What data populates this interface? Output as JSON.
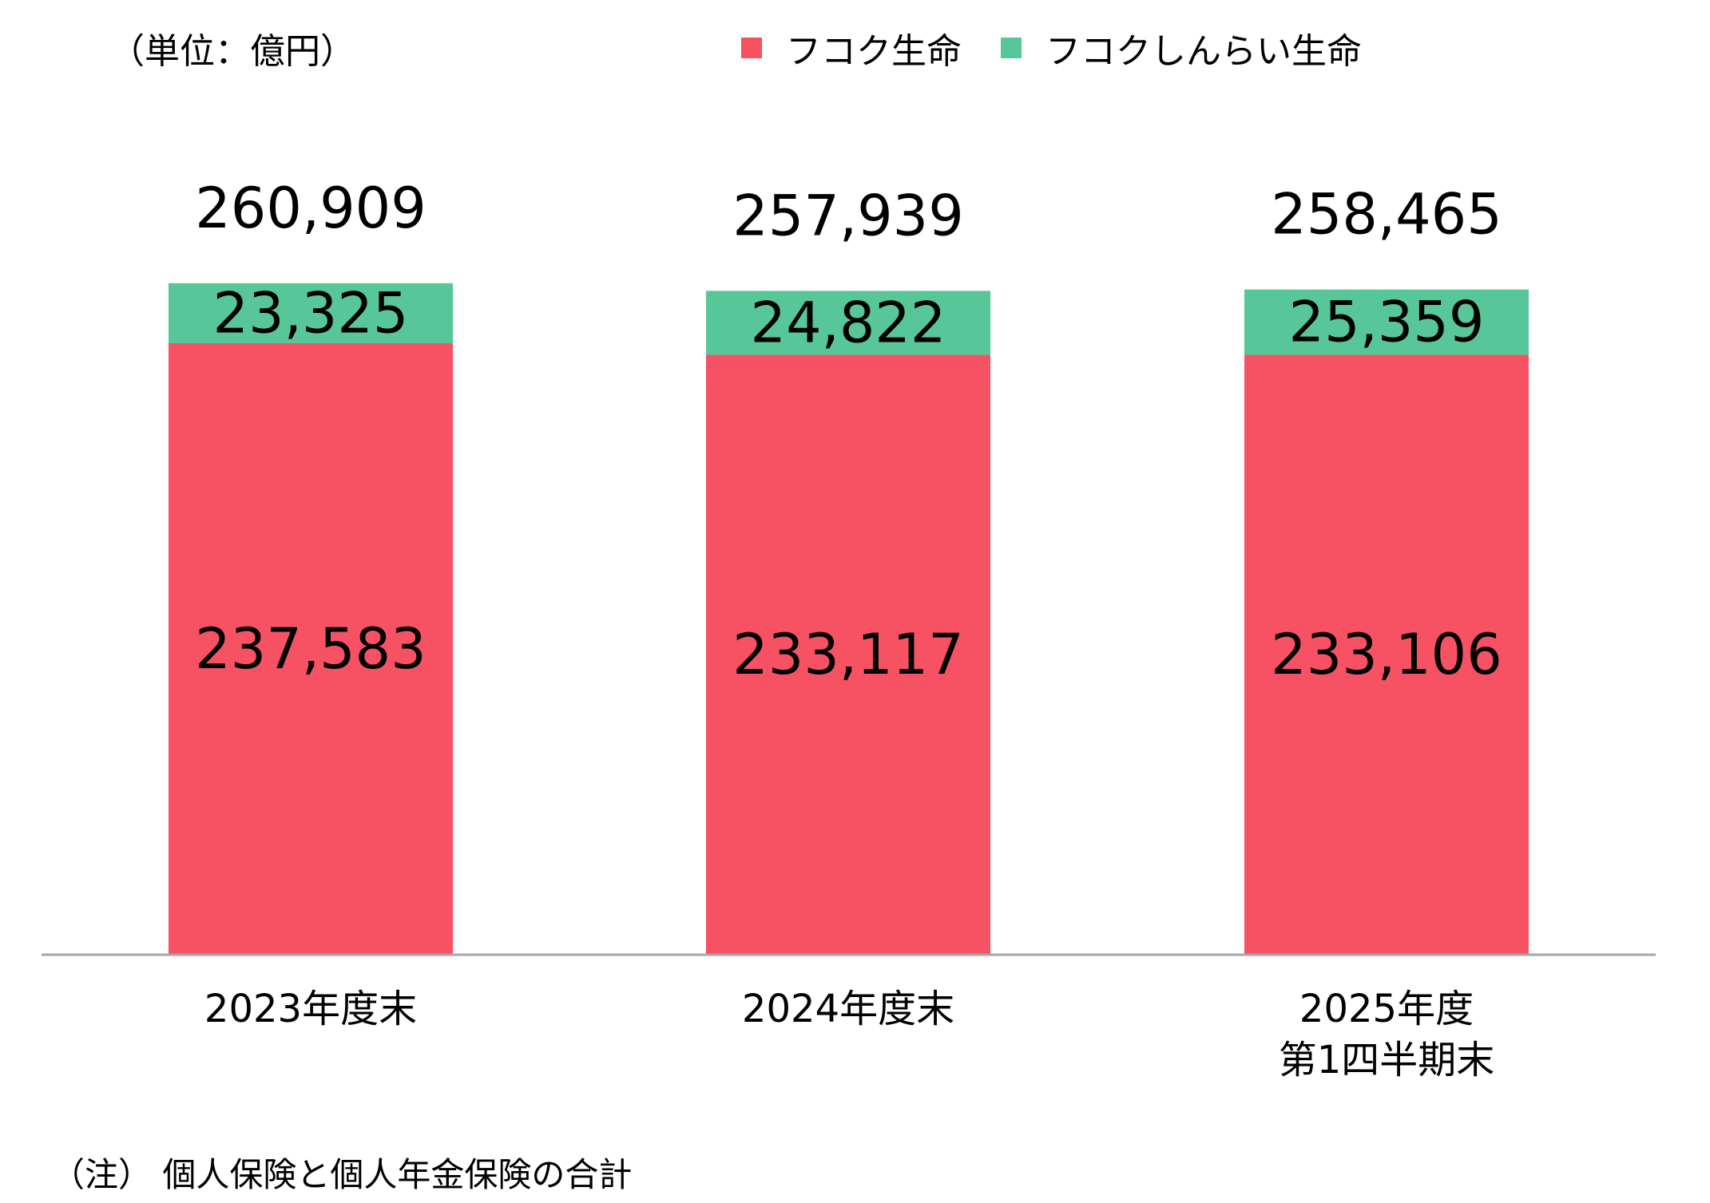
{
  "header": {
    "unit_label": "（単位：億円）"
  },
  "footnote": "（注） 個人保険と個人年金保険の合計",
  "chart_data": {
    "type": "bar",
    "stacked": true,
    "categories": [
      [
        "2023年度末"
      ],
      [
        "2024年度末"
      ],
      [
        "2025年度",
        "第1四半期末"
      ]
    ],
    "series": [
      {
        "name": "フコク生命",
        "color": "#f75164",
        "values": [
          237583,
          233117,
          233106
        ]
      },
      {
        "name": "フコクしんらい生命",
        "color": "#57c699",
        "values": [
          23325,
          24822,
          25359
        ]
      }
    ],
    "totals": [
      260909,
      257939,
      258465
    ],
    "data_labels": {
      "series": [
        [
          "237,583",
          "233,117",
          "233,106"
        ],
        [
          "23,325",
          "24,822",
          "25,359"
        ]
      ],
      "totals": [
        "260,909",
        "257,939",
        "258,465"
      ]
    },
    "legend_position": "top",
    "y_axis_visible": false,
    "grid": false
  }
}
